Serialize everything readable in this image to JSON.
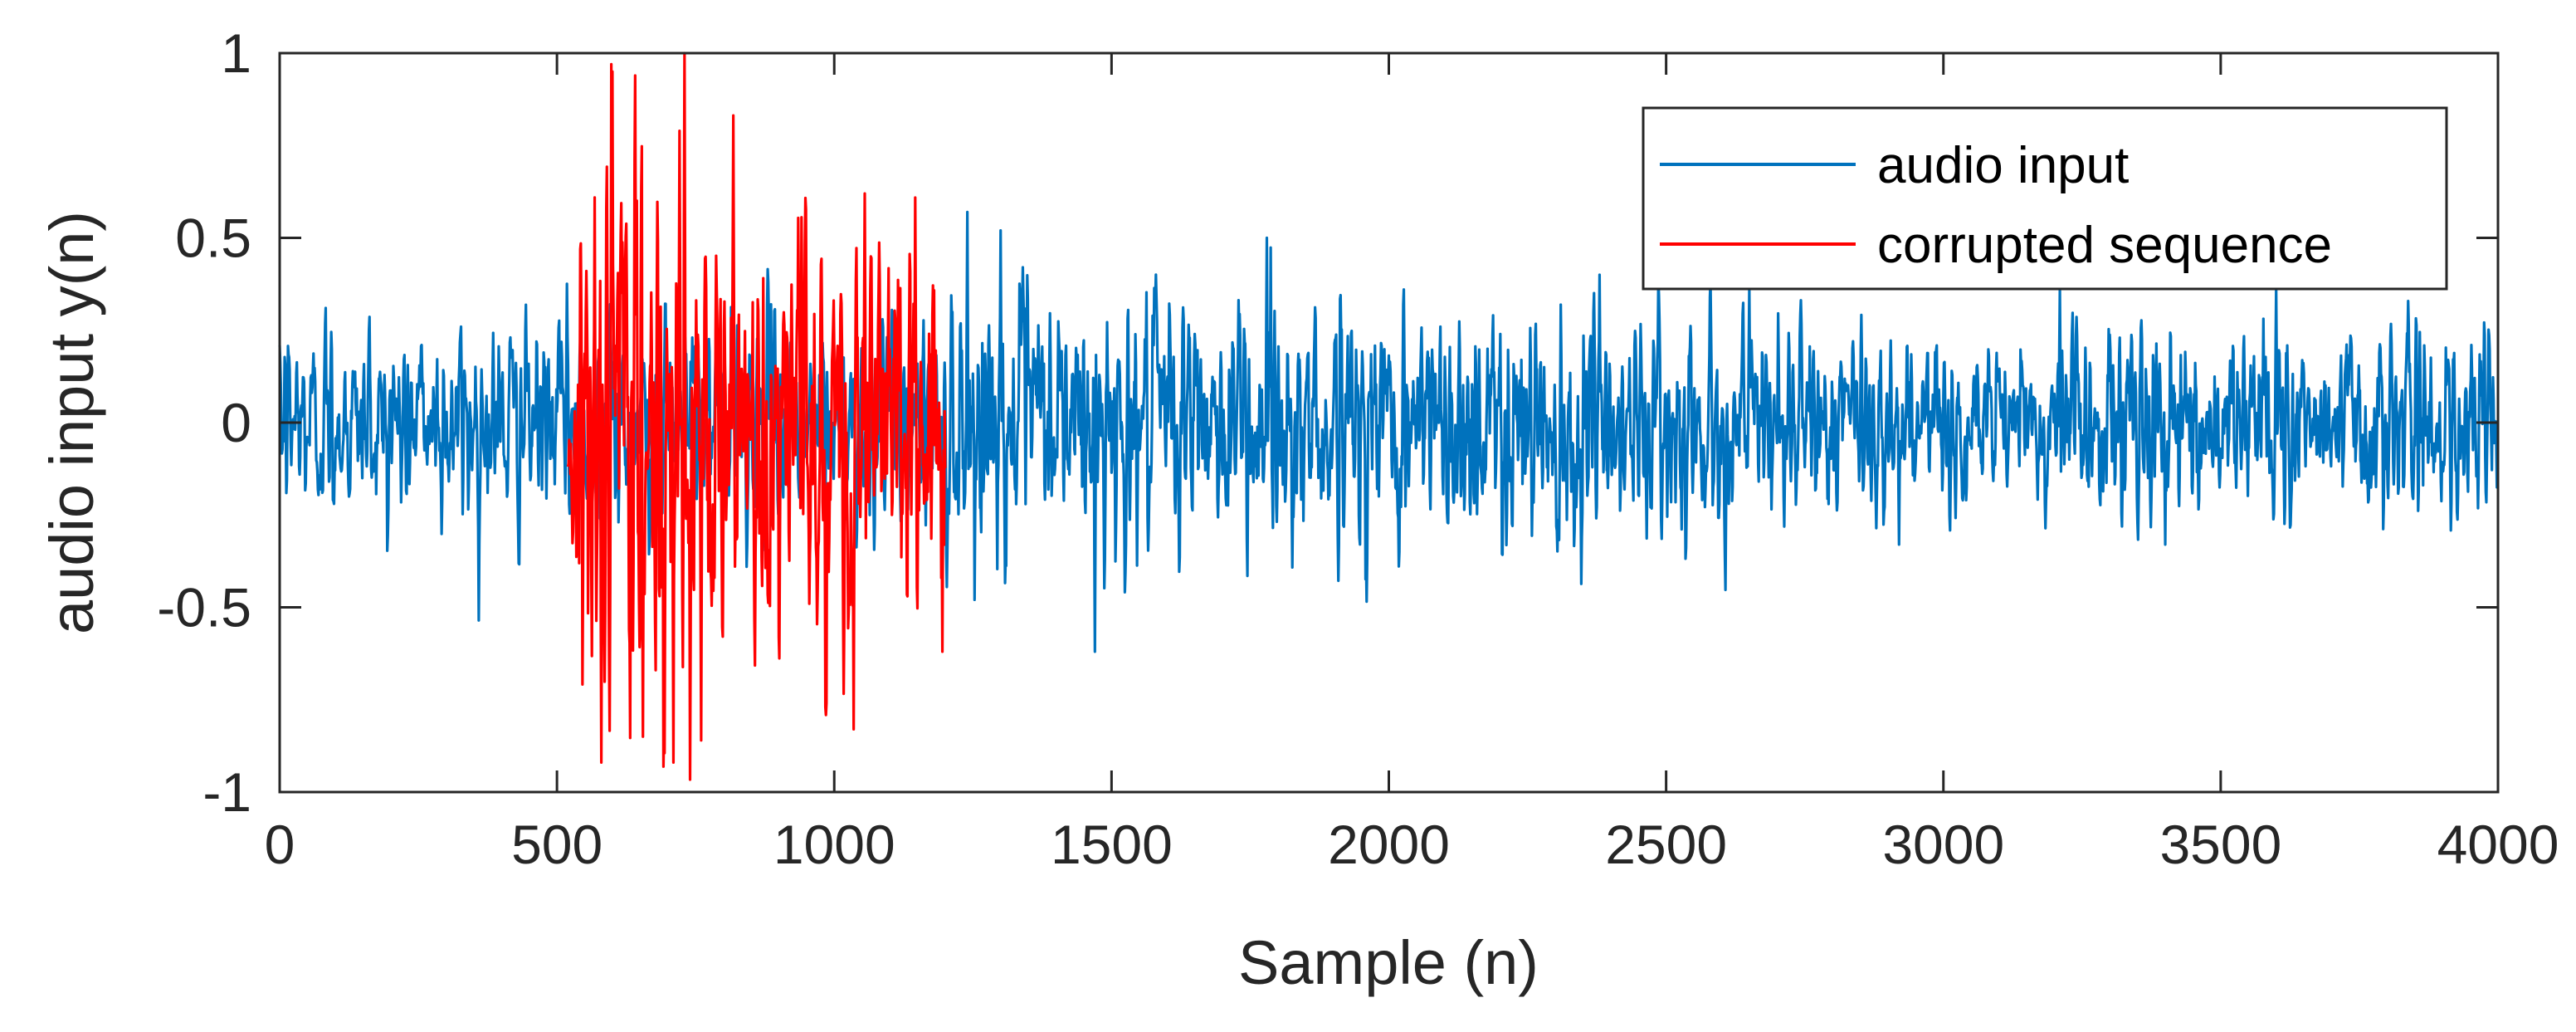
{
  "chart_data": {
    "type": "line",
    "title": "",
    "xlabel": "Sample (n)",
    "ylabel": "audio input y(n)",
    "xlim": [
      0,
      4000
    ],
    "ylim": [
      -1,
      1
    ],
    "grid": false,
    "box": true,
    "legend_location": "top-right",
    "x_ticks": [
      0,
      500,
      1000,
      1500,
      2000,
      2500,
      3000,
      3500,
      4000
    ],
    "x_tick_labels": [
      "0",
      "500",
      "1000",
      "1500",
      "2000",
      "2500",
      "3000",
      "3500",
      "4000"
    ],
    "y_ticks": [
      1,
      0.5,
      0,
      -0.5,
      -1
    ],
    "y_tick_labels": [
      "1",
      "0.5",
      "0",
      "-0.5",
      "-1"
    ],
    "series": [
      {
        "name": "audio input",
        "color": "#0072BD",
        "x_range": [
          0,
          4000
        ],
        "typical_amplitude": 0.2,
        "peaks": [
          {
            "x": 1240,
            "y": 0.57
          },
          {
            "x": 1300,
            "y": 0.52
          },
          {
            "x": 1470,
            "y": -0.62
          },
          {
            "x": 1780,
            "y": 0.5
          },
          {
            "x": 2380,
            "y": 0.4
          },
          {
            "x": 2650,
            "y": 0.36
          },
          {
            "x": 2920,
            "y": -0.33
          },
          {
            "x": 3210,
            "y": 0.36
          },
          {
            "x": 3400,
            "y": -0.33
          },
          {
            "x": 3600,
            "y": 0.36
          }
        ]
      },
      {
        "name": "corrupted sequence",
        "color": "#FF0000",
        "x_range": [
          520,
          1200
        ],
        "typical_amplitude": 0.45,
        "peaks": [
          {
            "x": 580,
            "y": -0.92
          },
          {
            "x": 600,
            "y": 0.95
          },
          {
            "x": 655,
            "y": -0.85
          },
          {
            "x": 710,
            "y": -0.92
          },
          {
            "x": 730,
            "y": 1.0
          },
          {
            "x": 760,
            "y": -0.86
          },
          {
            "x": 1035,
            "y": -0.83
          },
          {
            "x": 1055,
            "y": 0.62
          },
          {
            "x": 1195,
            "y": -0.62
          }
        ]
      }
    ]
  }
}
